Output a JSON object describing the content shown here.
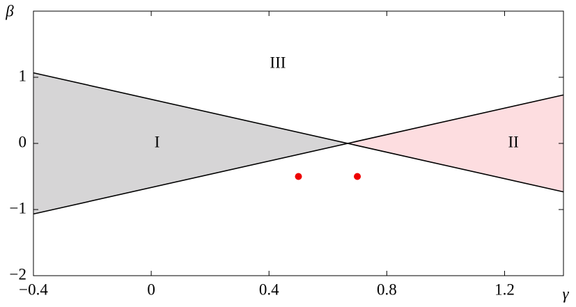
{
  "chart_data": {
    "type": "region",
    "xlabel": "γ",
    "ylabel": "β",
    "xlim": [
      -0.4,
      1.4
    ],
    "ylim": [
      -2,
      2
    ],
    "xticks": [
      {
        "value": -0.4,
        "label": "−0.4"
      },
      0,
      0.4,
      0.8,
      1.2
    ],
    "yticks": [
      {
        "value": -2,
        "label": "−2"
      },
      {
        "value": -1,
        "label": "−1"
      },
      0,
      1
    ],
    "regions": [
      {
        "color": "#d6d5d6",
        "x": [
          -0.4,
          0.667,
          -0.4
        ],
        "y": [
          1.067,
          0,
          -1.067
        ]
      },
      {
        "color": "#fddde0",
        "x": [
          0.667,
          1.4,
          1.4
        ],
        "y": [
          0,
          0.733,
          -0.733
        ]
      }
    ],
    "lines": [
      {
        "color": "#000000",
        "x": [
          -0.4,
          1.4
        ],
        "y": [
          1.067,
          -0.733
        ]
      },
      {
        "color": "#000000",
        "x": [
          -0.4,
          1.4
        ],
        "y": [
          -1.067,
          0.733
        ]
      }
    ],
    "points": {
      "color": "#ee0000",
      "x": [
        0.5,
        0.7
      ],
      "y": [
        -0.5,
        -0.5
      ]
    },
    "annotations": [
      {
        "text": "I",
        "x": 0.02,
        "y": 0
      },
      {
        "text": "II",
        "x": 1.23,
        "y": 0
      },
      {
        "text": "III",
        "x": 0.43,
        "y": 1.2
      }
    ]
  }
}
